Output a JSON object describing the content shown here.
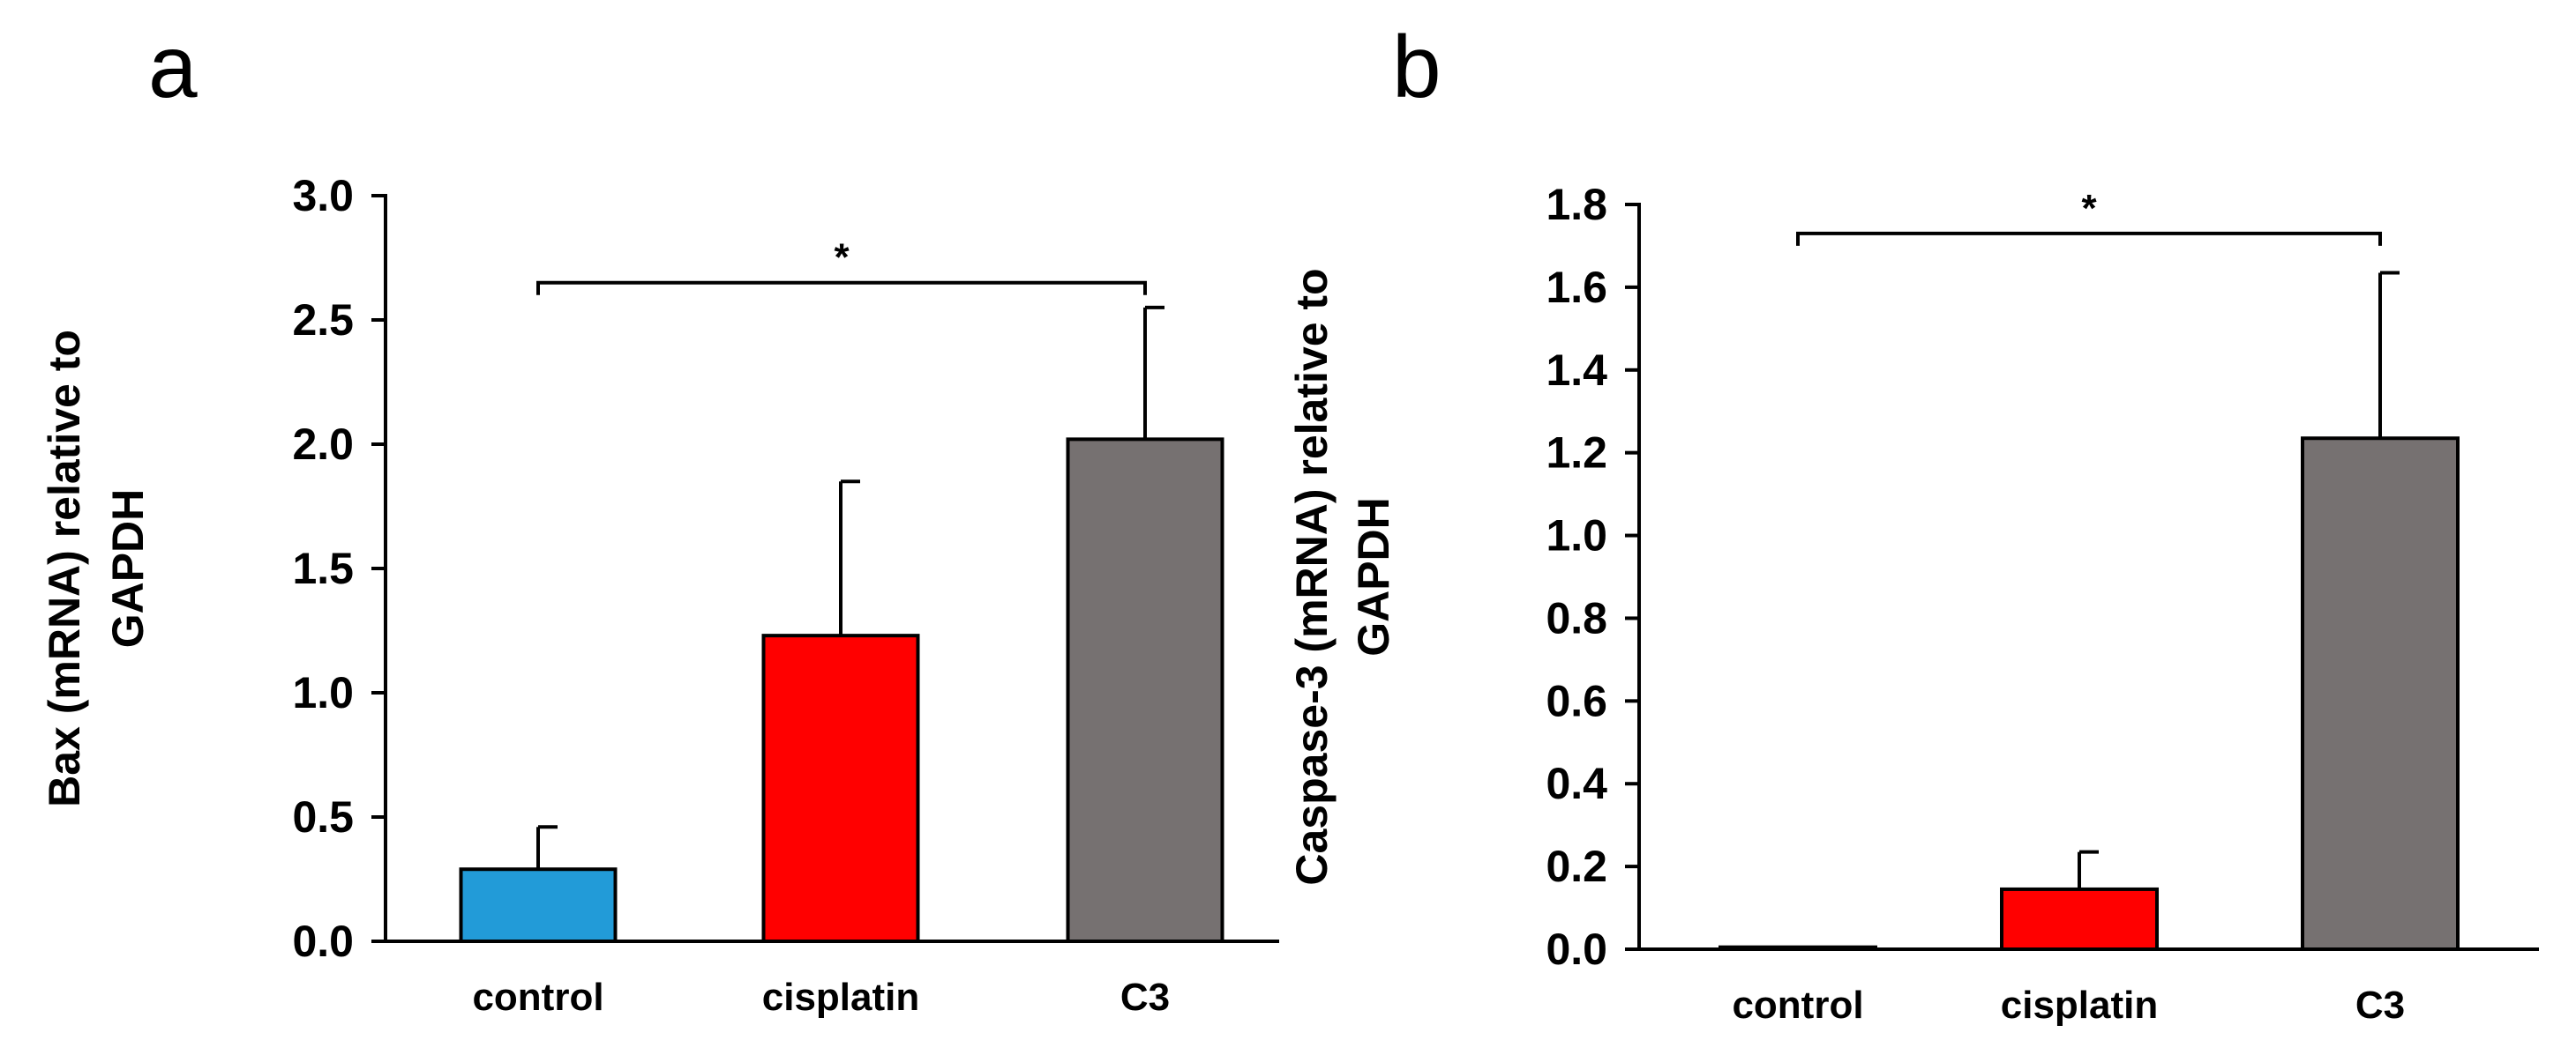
{
  "panels": [
    {
      "label": "a"
    },
    {
      "label": "b"
    }
  ],
  "chart_data": [
    {
      "type": "bar",
      "panel": "a",
      "categories": [
        "control",
        "cisplatin",
        "C3"
      ],
      "values": [
        0.29,
        1.23,
        2.02
      ],
      "errors": [
        0.17,
        0.62,
        0.53
      ],
      "colors": [
        "#229bd8",
        "#ff0000",
        "#767171"
      ],
      "ylabel_lines": [
        "Bax (mRNA) relative to",
        "GAPDH"
      ],
      "ylim": [
        0,
        3.0
      ],
      "yticks": [
        0.0,
        0.5,
        1.0,
        1.5,
        2.0,
        2.5,
        3.0
      ],
      "ytick_labels": [
        "0.0",
        "0.5",
        "1.0",
        "1.5",
        "2.0",
        "2.5",
        "3.0"
      ],
      "significance": {
        "from": "control",
        "to": "C3",
        "level": 2.65,
        "label": "*"
      },
      "grid": false
    },
    {
      "type": "bar",
      "panel": "b",
      "categories": [
        "control",
        "cisplatin",
        "C3"
      ],
      "values": [
        0.005,
        0.145,
        1.235
      ],
      "errors": [
        0.0,
        0.09,
        0.4
      ],
      "colors": [
        "#229bd8",
        "#ff0000",
        "#767171"
      ],
      "ylabel_lines": [
        "Caspase-3 (mRNA) relative to",
        "GAPDH"
      ],
      "ylim": [
        0,
        1.8
      ],
      "yticks": [
        0.0,
        0.2,
        0.4,
        0.6,
        0.8,
        1.0,
        1.2,
        1.4,
        1.6,
        1.8
      ],
      "ytick_labels": [
        "0.0",
        "0.2",
        "0.4",
        "0.6",
        "0.8",
        "1.0",
        "1.2",
        "1.4",
        "1.6",
        "1.8"
      ],
      "significance": {
        "from": "control",
        "to": "C3",
        "level": 1.73,
        "label": "*"
      },
      "grid": false
    }
  ]
}
